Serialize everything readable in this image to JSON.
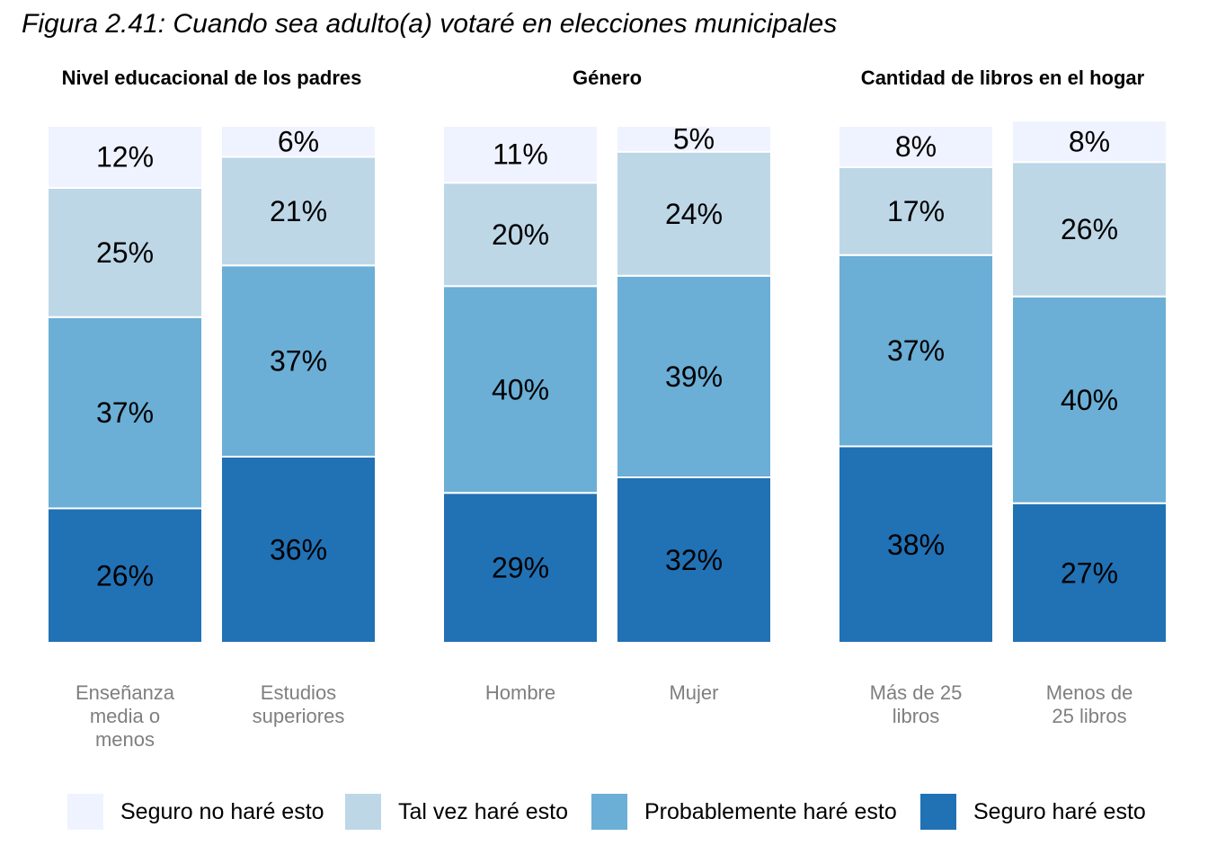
{
  "title": "Figura 2.41: Cuando sea adulto(a) votaré en elecciones municipales",
  "legend": [
    {
      "label": "Seguro no haré esto",
      "color": "#eff3ff"
    },
    {
      "label": "Tal vez haré esto",
      "color": "#bdd7e7"
    },
    {
      "label": "Probablemente haré esto",
      "color": "#6baed6"
    },
    {
      "label": "Seguro haré esto",
      "color": "#2171b5"
    }
  ],
  "chart_data": {
    "type": "bar",
    "stacked": true,
    "percent": true,
    "value_format": "{v}%",
    "stack_order": [
      "Seguro haré esto",
      "Probablemente haré esto",
      "Tal vez haré esto",
      "Seguro no haré esto"
    ],
    "panels": [
      {
        "title": "Nivel educacional de los padres",
        "categories": [
          "Enseñanza media o menos",
          "Estudios superiores"
        ],
        "series": [
          {
            "name": "Seguro no haré esto",
            "values": [
              12,
              6
            ]
          },
          {
            "name": "Tal vez haré esto",
            "values": [
              25,
              21
            ]
          },
          {
            "name": "Probablemente haré esto",
            "values": [
              37,
              37
            ]
          },
          {
            "name": "Seguro haré esto",
            "values": [
              26,
              36
            ]
          }
        ]
      },
      {
        "title": "Género",
        "categories": [
          "Hombre",
          "Mujer"
        ],
        "series": [
          {
            "name": "Seguro no haré esto",
            "values": [
              11,
              5
            ]
          },
          {
            "name": "Tal vez haré esto",
            "values": [
              20,
              24
            ]
          },
          {
            "name": "Probablemente haré esto",
            "values": [
              40,
              39
            ]
          },
          {
            "name": "Seguro haré esto",
            "values": [
              29,
              32
            ]
          }
        ]
      },
      {
        "title": "Cantidad de libros en el hogar",
        "categories": [
          "Más de 25 libros",
          "Menos de 25 libros"
        ],
        "series": [
          {
            "name": "Seguro no haré esto",
            "values": [
              8,
              8
            ]
          },
          {
            "name": "Tal vez haré esto",
            "values": [
              17,
              26
            ]
          },
          {
            "name": "Probablemente haré esto",
            "values": [
              37,
              40
            ]
          },
          {
            "name": "Seguro haré esto",
            "values": [
              38,
              27
            ]
          }
        ]
      }
    ],
    "legend_position": "bottom"
  }
}
